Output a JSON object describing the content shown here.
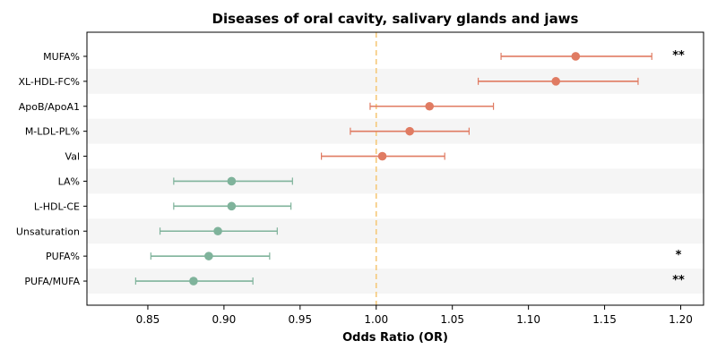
{
  "chart_data": {
    "type": "scatter",
    "title": "Diseases of oral cavity, salivary glands and jaws",
    "xlabel": "Odds Ratio (OR)",
    "ylabel": "",
    "xlim": [
      0.81,
      1.215
    ],
    "xticks": [
      0.85,
      0.9,
      0.95,
      1.0,
      1.05,
      1.1,
      1.15,
      1.2
    ],
    "xtick_labels": [
      "0.85",
      "0.90",
      "0.95",
      "1.00",
      "1.05",
      "1.10",
      "1.15",
      "1.20"
    ],
    "reference_line": 1.0,
    "grid": false,
    "alternating_row_bands": true,
    "colors": {
      "positive": "#e07b62",
      "negative": "#7fb39b",
      "reference": "#f5c97a",
      "band": "#f5f5f5"
    },
    "rows": [
      {
        "label": "MUFA%",
        "or": 1.131,
        "lo": 1.082,
        "hi": 1.181,
        "group": "positive",
        "sig": "**"
      },
      {
        "label": "XL-HDL-FC%",
        "or": 1.118,
        "lo": 1.067,
        "hi": 1.172,
        "group": "positive",
        "sig": ""
      },
      {
        "label": "ApoB/ApoA1",
        "or": 1.035,
        "lo": 0.996,
        "hi": 1.077,
        "group": "positive",
        "sig": ""
      },
      {
        "label": "M-LDL-PL%",
        "or": 1.022,
        "lo": 0.983,
        "hi": 1.061,
        "group": "positive",
        "sig": ""
      },
      {
        "label": "Val",
        "or": 1.004,
        "lo": 0.964,
        "hi": 1.045,
        "group": "positive",
        "sig": ""
      },
      {
        "label": "LA%",
        "or": 0.905,
        "lo": 0.867,
        "hi": 0.945,
        "group": "negative",
        "sig": ""
      },
      {
        "label": "L-HDL-CE",
        "or": 0.905,
        "lo": 0.867,
        "hi": 0.944,
        "group": "negative",
        "sig": ""
      },
      {
        "label": "Unsaturation",
        "or": 0.896,
        "lo": 0.858,
        "hi": 0.935,
        "group": "negative",
        "sig": ""
      },
      {
        "label": "PUFA%",
        "or": 0.89,
        "lo": 0.852,
        "hi": 0.93,
        "group": "negative",
        "sig": "*"
      },
      {
        "label": "PUFA/MUFA",
        "or": 0.88,
        "lo": 0.842,
        "hi": 0.919,
        "group": "negative",
        "sig": "**"
      }
    ]
  }
}
